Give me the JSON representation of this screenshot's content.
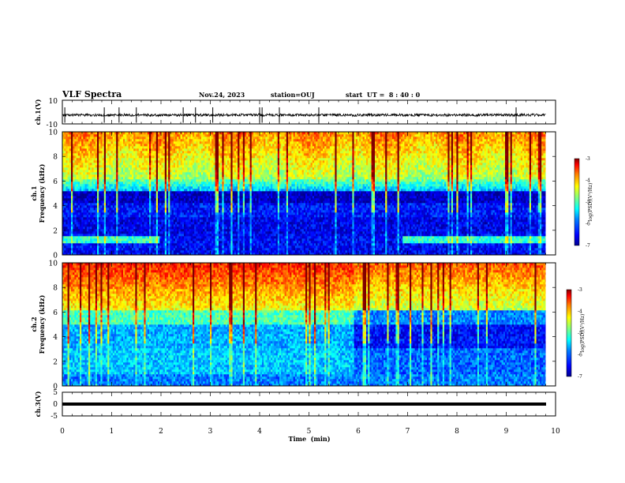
{
  "header": {
    "title": "VLF Spectra",
    "date": "Nov.24, 2023",
    "station": "station=OUJ",
    "start_ut": "start  UT =  8 : 40 : 0"
  },
  "chart_data": [
    {
      "type": "line",
      "name": "ch1-waveform",
      "ylabel": "ch.1(V)",
      "ylim": [
        -10,
        10
      ],
      "yticks": [
        "10",
        "-10"
      ],
      "baseline": -2.5,
      "spikes_x_min": [
        0.05,
        0.85,
        1.15,
        1.5,
        2.45,
        2.7,
        3.05,
        4.0,
        4.05,
        4.4,
        5.2,
        9.2
      ]
    },
    {
      "type": "heatmap",
      "name": "ch1-spectrogram",
      "ylabel": "ch.1\nFrequency (kHz)",
      "ylim": [
        0,
        10
      ],
      "yticks": [
        "0",
        "2",
        "4",
        "6",
        "8",
        "10"
      ],
      "xlim": [
        0,
        10
      ],
      "data_end_min": 9.8,
      "colorbar": {
        "label": "log(PSD)(V²/Hz)",
        "range": [
          -7,
          -3
        ],
        "ticks": [
          "-3",
          "-4",
          "-5",
          "-6",
          "-7"
        ]
      }
    },
    {
      "type": "heatmap",
      "name": "ch2-spectrogram",
      "ylabel": "ch.2\nFrequency (kHz)",
      "ylim": [
        0,
        10
      ],
      "yticks": [
        "0",
        "2",
        "4",
        "6",
        "8",
        "10"
      ],
      "xlim": [
        0,
        10
      ],
      "data_end_min": 9.8,
      "colorbar": {
        "label": "log(PSD)(V²/Hz)",
        "range": [
          -7,
          -3
        ],
        "ticks": [
          "-3",
          "-4",
          "-5",
          "-6",
          "-7"
        ]
      }
    },
    {
      "type": "line",
      "name": "ch3-waveform",
      "ylabel": "ch.3(V)",
      "ylim": [
        -5,
        5
      ],
      "yticks": [
        "5",
        "0",
        "-5"
      ],
      "baseline": -1.0
    }
  ],
  "xaxis": {
    "label": "Time  (min)",
    "range": [
      0,
      10
    ],
    "ticks": [
      "0",
      "1",
      "2",
      "3",
      "4",
      "5",
      "6",
      "7",
      "8",
      "9",
      "10"
    ]
  },
  "colors": {
    "frame": "#000000",
    "jet_stops": [
      "#00008f",
      "#0000ff",
      "#0080ff",
      "#00ffff",
      "#80ff80",
      "#ffff00",
      "#ff8000",
      "#ff0000",
      "#800000"
    ]
  }
}
